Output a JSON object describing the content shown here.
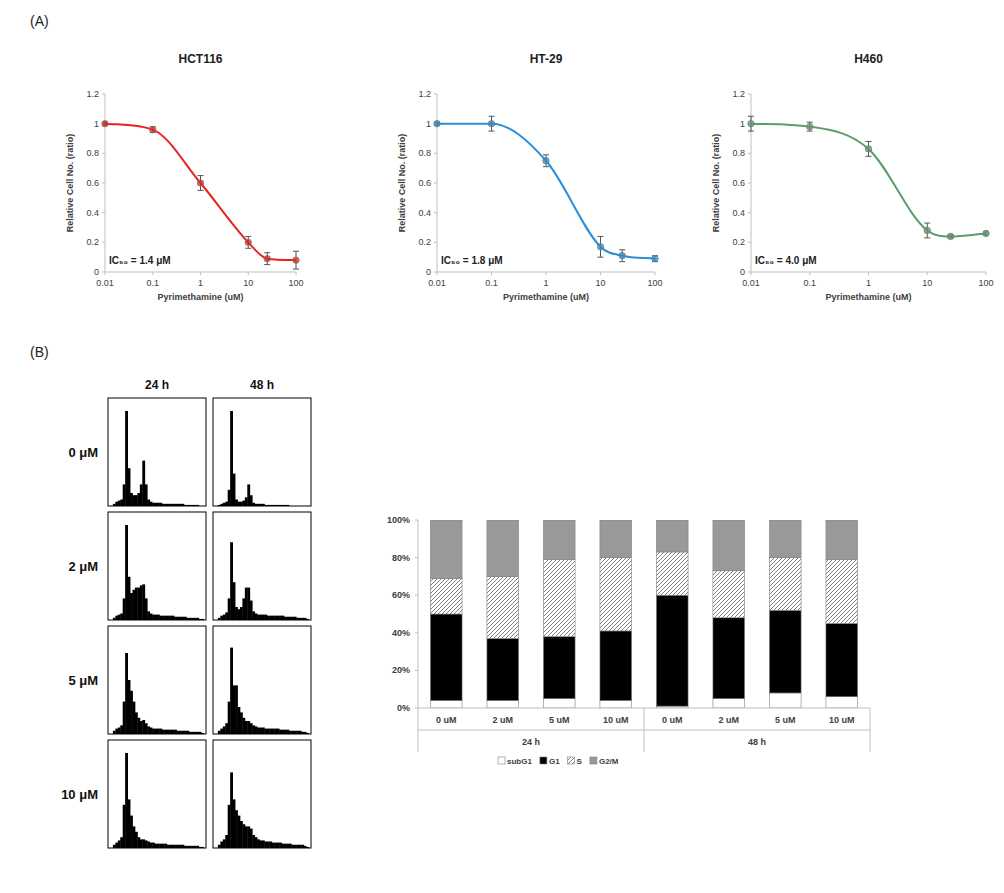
{
  "panel_labels": [
    "(A)",
    "(B)"
  ],
  "chart_data": [
    {
      "type": "line",
      "title": "HCT116",
      "x_label": "Pyrimethamine (uM)",
      "y_label": "Relative Cell No. (ratio)",
      "annotation": "IC₅₀ = 1.4 μM",
      "log": "x",
      "color": "#e8231f",
      "marker": "circle",
      "xlim": [
        0.01,
        100
      ],
      "xticks": [
        0.01,
        0.1,
        1,
        10,
        100
      ],
      "ylim": [
        0,
        1.2
      ],
      "yticks": [
        0,
        0.2,
        0.4,
        0.6,
        0.8,
        1,
        1.2
      ],
      "x": [
        0.01,
        0.1,
        1,
        10,
        25,
        100
      ],
      "values": [
        1.0,
        0.96,
        0.6,
        0.2,
        0.09,
        0.08
      ],
      "errors": [
        0.01,
        0.02,
        0.05,
        0.04,
        0.04,
        0.06
      ]
    },
    {
      "type": "line",
      "title": "HT-29",
      "x_label": "Pyrimethamine (uM)",
      "y_label": "Relative Cell No. (ratio)",
      "annotation": "IC₅₀ = 1.8 μM",
      "log": "x",
      "color": "#2b8fd8",
      "marker": "circle",
      "xlim": [
        0.01,
        100
      ],
      "xticks": [
        0.01,
        0.1,
        1,
        10,
        100
      ],
      "ylim": [
        0,
        1.2
      ],
      "yticks": [
        0,
        0.2,
        0.4,
        0.6,
        0.8,
        1,
        1.2
      ],
      "x": [
        0.01,
        0.1,
        1,
        10,
        25,
        100
      ],
      "values": [
        1.0,
        1.0,
        0.75,
        0.17,
        0.11,
        0.09
      ],
      "errors": [
        0.01,
        0.05,
        0.04,
        0.07,
        0.04,
        0.02
      ]
    },
    {
      "type": "line",
      "title": "H460",
      "x_label": "Pyrimethamine (uM)",
      "y_label": "Relative Cell No. (ratio)",
      "annotation": "IC₅₀ = 4.0 μM",
      "log": "x",
      "color": "#5a9e6f",
      "marker": "circle",
      "xlim": [
        0.01,
        100
      ],
      "xticks": [
        0.01,
        0.1,
        1,
        10,
        100
      ],
      "ylim": [
        0,
        1.2
      ],
      "yticks": [
        0,
        0.2,
        0.4,
        0.6,
        0.8,
        1,
        1.2
      ],
      "x": [
        0.01,
        0.1,
        1,
        10,
        25,
        100
      ],
      "values": [
        1.0,
        0.98,
        0.83,
        0.28,
        0.24,
        0.26
      ],
      "errors": [
        0.05,
        0.03,
        0.05,
        0.05,
        0.01,
        0.01
      ]
    },
    {
      "type": "histogram",
      "row_labels": [
        "0 μM",
        "2 μM",
        "5 μM",
        "10 μM"
      ],
      "column_labels": [
        "24 h",
        "48 h"
      ],
      "ylim": [
        0,
        1
      ],
      "tick_labels": false,
      "color": "#000000",
      "counts": [
        [
          [
            0,
            0,
            0.02,
            0.04,
            0.05,
            0.06,
            0.2,
            0.88,
            0.35,
            0.12,
            0.1,
            0.1,
            0.12,
            0.2,
            0.42,
            0.2,
            0.06,
            0.04,
            0.03,
            0.03,
            0.03,
            0.03,
            0.02,
            0.02,
            0.02,
            0.02,
            0.02,
            0.02,
            0.02,
            0.02,
            0.02,
            0.01,
            0.01,
            0.01,
            0.01,
            0.01,
            0.01,
            0,
            0,
            0
          ],
          [
            0,
            0,
            0.01,
            0.02,
            0.03,
            0.04,
            0.15,
            0.88,
            0.3,
            0.06,
            0.04,
            0.04,
            0.05,
            0.08,
            0.2,
            0.1,
            0.03,
            0.02,
            0.02,
            0.02,
            0.02,
            0.01,
            0.01,
            0.01,
            0.01,
            0.01,
            0.01,
            0.01,
            0.01,
            0.01,
            0.01,
            0,
            0,
            0,
            0,
            0,
            0,
            0,
            0,
            0
          ]
        ],
        [
          [
            0,
            0,
            0.02,
            0.04,
            0.05,
            0.06,
            0.2,
            0.88,
            0.4,
            0.25,
            0.28,
            0.3,
            0.3,
            0.32,
            0.33,
            0.2,
            0.08,
            0.06,
            0.05,
            0.05,
            0.05,
            0.04,
            0.04,
            0.04,
            0.04,
            0.04,
            0.04,
            0.03,
            0.03,
            0.03,
            0.03,
            0.03,
            0.02,
            0.02,
            0.02,
            0.02,
            0.02,
            0.01,
            0.01,
            0
          ],
          [
            0,
            0,
            0.02,
            0.04,
            0.05,
            0.07,
            0.2,
            0.72,
            0.35,
            0.12,
            0.1,
            0.12,
            0.2,
            0.3,
            0.3,
            0.18,
            0.08,
            0.06,
            0.05,
            0.05,
            0.05,
            0.05,
            0.04,
            0.04,
            0.04,
            0.04,
            0.04,
            0.04,
            0.04,
            0.03,
            0.03,
            0.03,
            0.03,
            0.03,
            0.02,
            0.02,
            0.02,
            0.02,
            0.01,
            0
          ]
        ],
        [
          [
            0,
            0,
            0.03,
            0.05,
            0.06,
            0.08,
            0.3,
            0.75,
            0.5,
            0.4,
            0.3,
            0.2,
            0.15,
            0.12,
            0.13,
            0.1,
            0.07,
            0.06,
            0.05,
            0.05,
            0.05,
            0.05,
            0.04,
            0.04,
            0.04,
            0.04,
            0.04,
            0.04,
            0.03,
            0.03,
            0.03,
            0.03,
            0.03,
            0.02,
            0.02,
            0.02,
            0.02,
            0.02,
            0.01,
            0
          ],
          [
            0,
            0,
            0.03,
            0.05,
            0.07,
            0.1,
            0.3,
            0.8,
            0.45,
            0.45,
            0.25,
            0.2,
            0.15,
            0.12,
            0.12,
            0.1,
            0.08,
            0.07,
            0.06,
            0.06,
            0.06,
            0.05,
            0.05,
            0.05,
            0.05,
            0.05,
            0.05,
            0.04,
            0.04,
            0.04,
            0.04,
            0.03,
            0.03,
            0.03,
            0.03,
            0.03,
            0.02,
            0.02,
            0.01,
            0
          ]
        ],
        [
          [
            0,
            0,
            0.03,
            0.05,
            0.07,
            0.1,
            0.4,
            0.88,
            0.45,
            0.3,
            0.2,
            0.15,
            0.1,
            0.08,
            0.08,
            0.07,
            0.06,
            0.05,
            0.05,
            0.04,
            0.04,
            0.04,
            0.04,
            0.04,
            0.03,
            0.03,
            0.03,
            0.03,
            0.03,
            0.03,
            0.03,
            0.02,
            0.02,
            0.02,
            0.02,
            0.02,
            0.02,
            0.01,
            0.01,
            0
          ],
          [
            0,
            0,
            0.03,
            0.06,
            0.08,
            0.12,
            0.4,
            0.7,
            0.45,
            0.35,
            0.3,
            0.25,
            0.22,
            0.2,
            0.2,
            0.18,
            0.12,
            0.1,
            0.08,
            0.07,
            0.07,
            0.06,
            0.06,
            0.06,
            0.05,
            0.05,
            0.05,
            0.05,
            0.04,
            0.04,
            0.04,
            0.04,
            0.03,
            0.03,
            0.03,
            0.03,
            0.03,
            0.02,
            0.01,
            0
          ]
        ]
      ]
    },
    {
      "type": "bar",
      "stacked": true,
      "legend": "bottom",
      "categories": [
        "0 uM",
        "2 uM",
        "5 uM",
        "10 uM",
        "0 uM",
        "2 uM",
        "5 uM",
        "10 uM"
      ],
      "groups": [
        "24 h",
        "48 h"
      ],
      "ylim": [
        0,
        100
      ],
      "yticks": [
        {
          "value": 0,
          "label": "0%"
        },
        {
          "value": 20,
          "label": "20%"
        },
        {
          "value": 40,
          "label": "40%"
        },
        {
          "value": 60,
          "label": "60%"
        },
        {
          "value": 80,
          "label": "80%"
        },
        {
          "value": 100,
          "label": "100%"
        }
      ],
      "series": [
        {
          "name": "subG1",
          "color": "#ffffff",
          "values": [
            4,
            4,
            5,
            4,
            1,
            5,
            8,
            6
          ]
        },
        {
          "name": "G1",
          "color": "#000000",
          "values": [
            46,
            33,
            33,
            37,
            59,
            43,
            44,
            39
          ]
        },
        {
          "name": "S",
          "color": "#7f7f7f",
          "marker": "hatch",
          "values": [
            19,
            33,
            41,
            39,
            23,
            25,
            28,
            34
          ]
        },
        {
          "name": "G2/M",
          "color": "#999999",
          "values": [
            31,
            30,
            21,
            20,
            17,
            27,
            20,
            21
          ]
        }
      ]
    }
  ]
}
